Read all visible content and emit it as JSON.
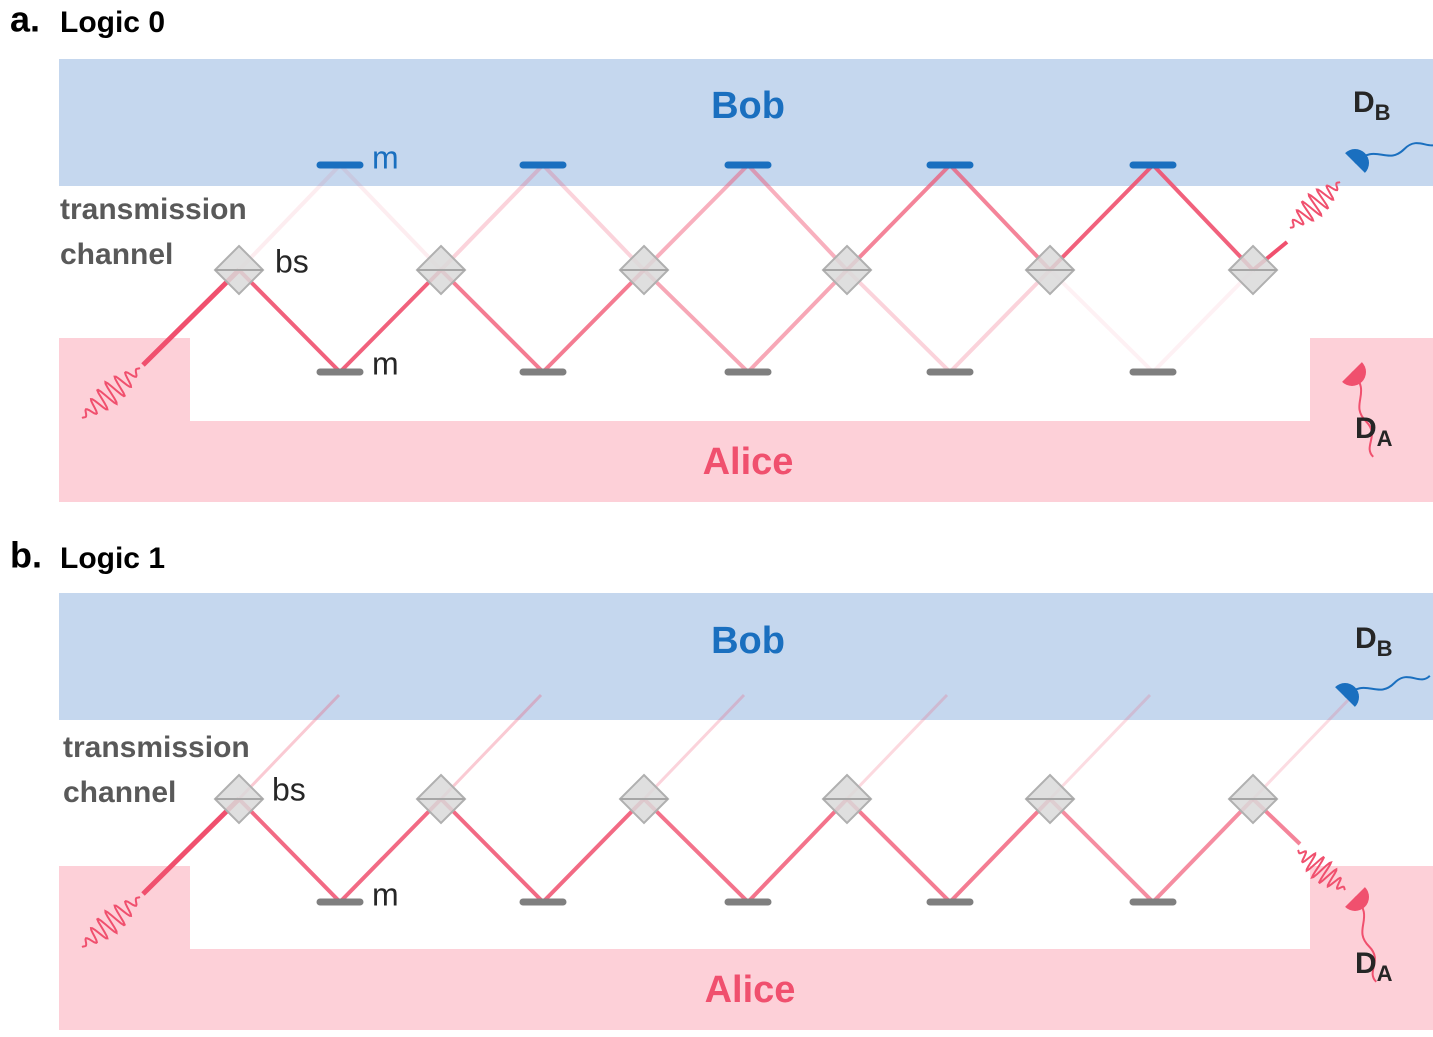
{
  "panels": [
    {
      "label": "a.",
      "title": "Logic 0",
      "bob": "Bob",
      "alice": "Alice",
      "channel": [
        "transmission",
        "channel"
      ],
      "mirror_labels": [
        "m",
        "m"
      ],
      "bs_label": "bs",
      "detector_b": {
        "main": "D",
        "sub": "B"
      },
      "detector_a": {
        "main": "D",
        "sub": "A"
      }
    },
    {
      "label": "b.",
      "title": "Logic 1",
      "bob": "Bob",
      "alice": "Alice",
      "channel": [
        "transmission",
        "channel"
      ],
      "mirror_labels": [
        "m"
      ],
      "bs_label": "bs",
      "detector_b": {
        "main": "D",
        "sub": "B"
      },
      "detector_a": {
        "main": "D",
        "sub": "A"
      }
    }
  ]
}
